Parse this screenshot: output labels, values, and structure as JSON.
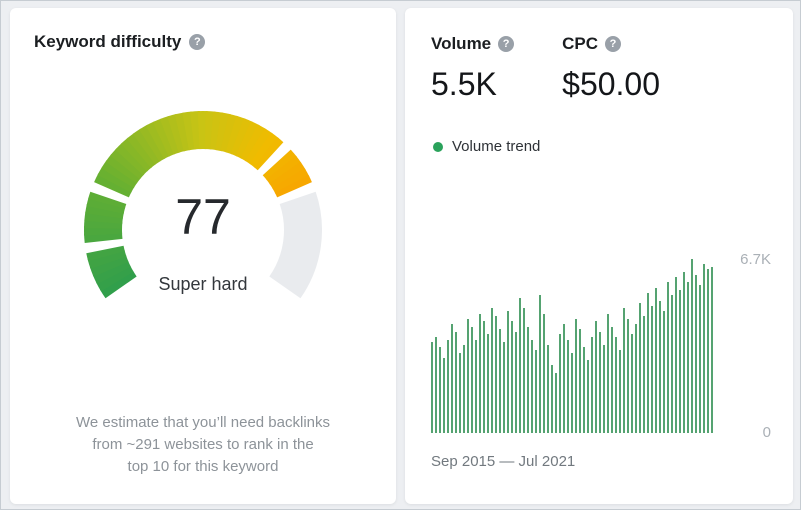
{
  "left_panel": {
    "title": "Keyword difficulty",
    "footnote_lines": [
      "We estimate that you’ll need backlinks",
      "from ~291 websites to rank in the",
      "top 10 for this keyword"
    ]
  },
  "right_panel": {
    "volume": {
      "label": "Volume",
      "value": "5.5K"
    },
    "cpc": {
      "label": "CPC",
      "value": "$50.00"
    }
  },
  "icons": {
    "help_glyph": "?"
  },
  "colors": {
    "bar": "#55a371",
    "legend_dot": "#2aa25b",
    "gauge_track": "#e9ebee",
    "axis_label": "#aab0b6"
  },
  "chart_data": [
    {
      "type": "gauge",
      "title": "Keyword difficulty",
      "value": 77,
      "min": 0,
      "max": 100,
      "label": "Super hard",
      "segments": [
        [
          0,
          0.095
        ],
        [
          0.115,
          0.215
        ],
        [
          0.235,
          0.67
        ],
        [
          0.69,
          0.765
        ]
      ],
      "color_stops": [
        [
          0,
          "#2f9e4c"
        ],
        [
          0.25,
          "#66b031"
        ],
        [
          0.5,
          "#c9c414"
        ],
        [
          0.65,
          "#f0bb00"
        ],
        [
          0.765,
          "#f7a600"
        ]
      ]
    },
    {
      "type": "bar",
      "title": "Volume trend",
      "x_range_label": "Sep 2015 — Jul 2021",
      "x_start": "Sep 2015",
      "x_end": "Jul 2021",
      "ylim": [
        0,
        6700
      ],
      "ymax_label": "6.7K",
      "ymin_label": "0",
      "values": [
        3500,
        3700,
        3300,
        2900,
        3600,
        4200,
        3900,
        3100,
        3400,
        4400,
        4100,
        3600,
        4600,
        4300,
        3800,
        4800,
        4500,
        4000,
        3500,
        4700,
        4300,
        3900,
        5200,
        4800,
        4100,
        3600,
        3200,
        5300,
        4600,
        3400,
        2600,
        2300,
        3800,
        4200,
        3600,
        3100,
        4400,
        4000,
        3300,
        2800,
        3700,
        4300,
        3900,
        3400,
        4600,
        4100,
        3700,
        3200,
        4800,
        4400,
        3800,
        4200,
        5000,
        4500,
        5400,
        4900,
        5600,
        5100,
        4700,
        5800,
        5300,
        6000,
        5500,
        6200,
        5800,
        6700,
        6100,
        5700,
        6500,
        6300,
        6400
      ]
    }
  ]
}
